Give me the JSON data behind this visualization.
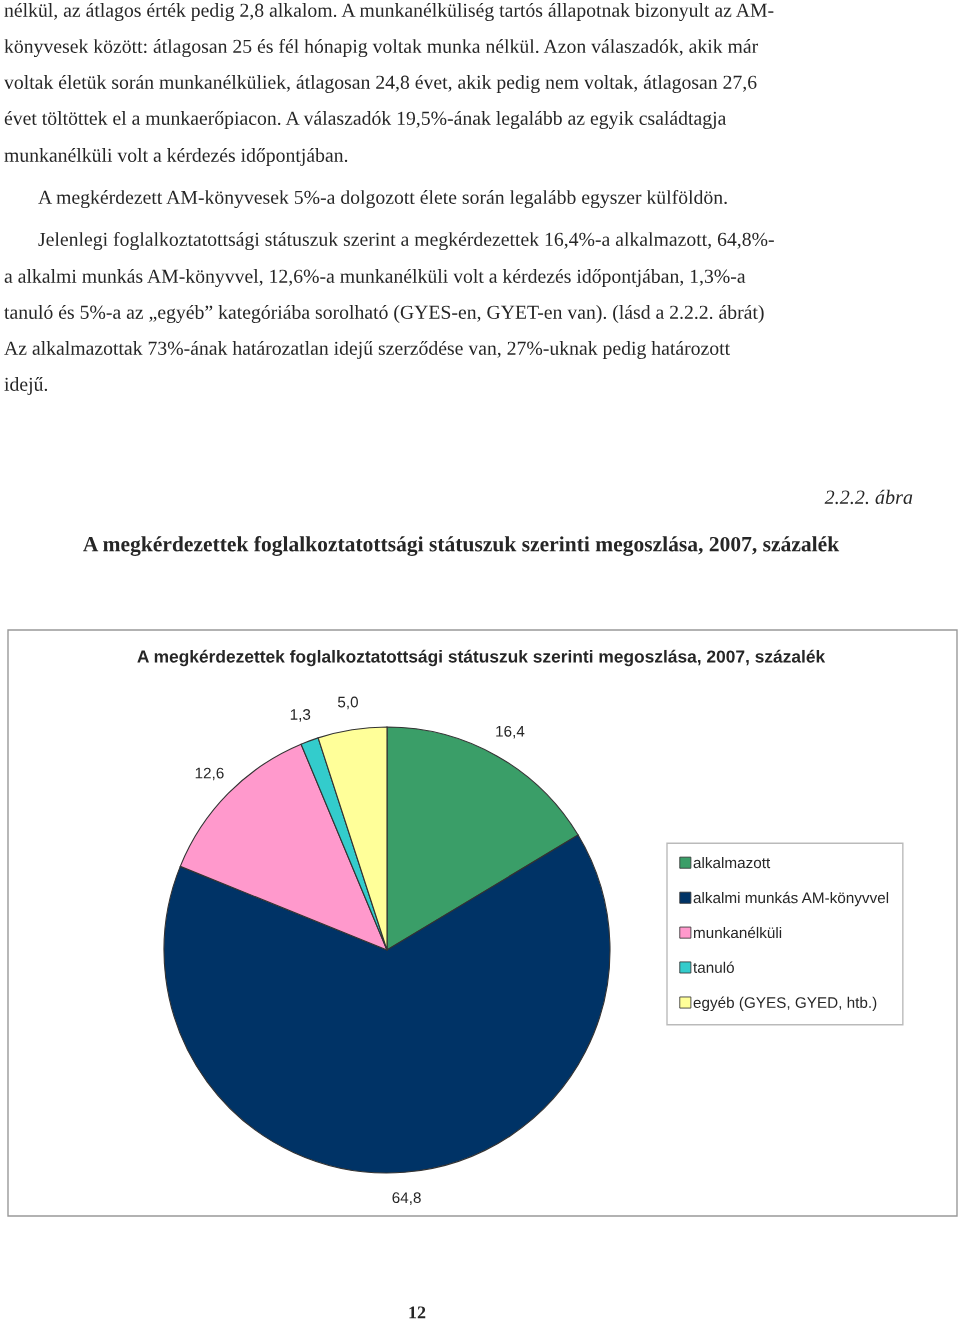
{
  "chart_data": {
    "type": "pie",
    "title": "A megkérdezettek foglalkoztatottsági státuszuk szerinti megoszlása, 2007, százalék",
    "subtitle": "A megkérdezettek foglalkoztatottsági státuszuk szerinti megoszlása, 2007, százalék",
    "categories": [
      "alkalmazott",
      "alkalmi munkás AM-könyvvel",
      "munkanélküli",
      "tanuló",
      "egyéb (GYES, GYED, htb.)"
    ],
    "values": [
      16.4,
      64.8,
      12.6,
      1.3,
      5.0
    ],
    "colors": [
      "#3a9e68",
      "#003366",
      "#ff99cc",
      "#33cccc",
      "#ffff99"
    ],
    "value_labels": [
      "16,4",
      "64,8",
      "12,6",
      "1,3",
      "5,0"
    ],
    "legend": "right",
    "annotations": [
      "nélkül, az átlagos érték pedig 2,8 alkalom. A munkanélküliség tartós állapotnak bizonyult az AM-",
      "könyvesek között: átlagosan 25 és fél hónapig voltak munka nélkül. Azon válaszadók, akik már",
      "voltak életük során munkanélküliek, átlagosan 24,8 évet, akik pedig nem voltak, átlagosan 27,6",
      "évet töltöttek el a munkaerőpiacon. A válaszadók 19,5%-ának legalább az egyik családtagja",
      "munkanélküli volt a kérdezés időpontjában.",
      "A megkérdezett AM-könyvesek 5%-a dolgozott élete során legalább egyszer külföldön.",
      "Jelenlegi foglalkoztatottsági státuszuk szerint a megkérdezettek 16,4%-a alkalmazott, 64,8%-",
      "a alkalmi munkás AM-könyvvel, 12,6%-a munkanélküli volt a kérdezés időpontjában, 1,3%-a",
      "tanuló és 5%-a az „egyéb” kategóriába sorolható (GYES-en, GYET-en van). (lásd a 2.2.2. ábrát)",
      "Az alkalmazottak 73%-ának határozatlan idejű szerződése van, 27%-uknak pedig határozott",
      "idejű.",
      "2.2.2. ábra",
      "12"
    ]
  }
}
